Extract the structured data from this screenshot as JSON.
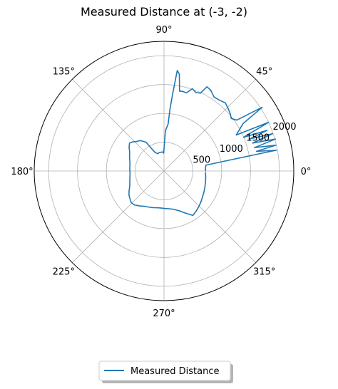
{
  "chart_data": {
    "type": "polar-line",
    "title": "Measured Distance at (-3, -2)",
    "theta_ticks": [
      "0°",
      "45°",
      "90°",
      "135°",
      "180°",
      "225°",
      "270°",
      "315°"
    ],
    "theta_tick_degrees": [
      0,
      45,
      90,
      135,
      180,
      225,
      270,
      315
    ],
    "r_ticks": [
      "500",
      "1000",
      "1500",
      "2000"
    ],
    "r_tick_values": [
      500,
      1000,
      1500,
      2000
    ],
    "rlim": [
      0,
      2250
    ],
    "grid": true,
    "legend_placement": "bottom-center",
    "series": [
      {
        "name": "Measured Distance",
        "color": "#1f77b4",
        "points": [
          {
            "theta": 0,
            "r": 720
          },
          {
            "theta": 5,
            "r": 723
          },
          {
            "theta": 8,
            "r": 735
          },
          {
            "theta": 10.5,
            "r": 1980
          },
          {
            "theta": 12,
            "r": 1640
          },
          {
            "theta": 13,
            "r": 1990
          },
          {
            "theta": 14.5,
            "r": 1620
          },
          {
            "theta": 16,
            "r": 2010
          },
          {
            "theta": 17.5,
            "r": 1610
          },
          {
            "theta": 19,
            "r": 1990
          },
          {
            "theta": 20.5,
            "r": 1590
          },
          {
            "theta": 21.5,
            "r": 1920
          },
          {
            "theta": 23,
            "r": 1500
          },
          {
            "theta": 25,
            "r": 2000
          },
          {
            "theta": 26.5,
            "r": 1400
          },
          {
            "theta": 28,
            "r": 1460
          },
          {
            "theta": 31,
            "r": 1600
          },
          {
            "theta": 33,
            "r": 2030
          },
          {
            "theta": 35,
            "r": 1540
          },
          {
            "theta": 38,
            "r": 1480
          },
          {
            "theta": 41,
            "r": 1520
          },
          {
            "theta": 44,
            "r": 1550
          },
          {
            "theta": 48,
            "r": 1590
          },
          {
            "theta": 52,
            "r": 1560
          },
          {
            "theta": 56,
            "r": 1550
          },
          {
            "theta": 60,
            "r": 1620
          },
          {
            "theta": 63,
            "r": 1640
          },
          {
            "theta": 65,
            "r": 1490
          },
          {
            "theta": 68,
            "r": 1470
          },
          {
            "theta": 71,
            "r": 1510
          },
          {
            "theta": 74,
            "r": 1410
          },
          {
            "theta": 77,
            "r": 1420
          },
          {
            "theta": 79,
            "r": 1410
          },
          {
            "theta": 81,
            "r": 1700
          },
          {
            "theta": 82.5,
            "r": 1760
          },
          {
            "theta": 83.5,
            "r": 1380
          },
          {
            "theta": 84.5,
            "r": 1080
          },
          {
            "theta": 85,
            "r": 820
          },
          {
            "theta": 88,
            "r": 700
          },
          {
            "theta": 91,
            "r": 310
          },
          {
            "theta": 93,
            "r": 330
          },
          {
            "theta": 98,
            "r": 330
          },
          {
            "theta": 104,
            "r": 330
          },
          {
            "theta": 110,
            "r": 320
          },
          {
            "theta": 116,
            "r": 360
          },
          {
            "theta": 122,
            "r": 590
          },
          {
            "theta": 128,
            "r": 670
          },
          {
            "theta": 133,
            "r": 700
          },
          {
            "theta": 137,
            "r": 740
          },
          {
            "theta": 141,
            "r": 770
          },
          {
            "theta": 146,
            "r": 730
          },
          {
            "theta": 151,
            "r": 680
          },
          {
            "theta": 157,
            "r": 650
          },
          {
            "theta": 163,
            "r": 620
          },
          {
            "theta": 170,
            "r": 600
          },
          {
            "theta": 177,
            "r": 595
          },
          {
            "theta": 183,
            "r": 590
          },
          {
            "theta": 190,
            "r": 600
          },
          {
            "theta": 197,
            "r": 620
          },
          {
            "theta": 204,
            "r": 650
          },
          {
            "theta": 210,
            "r": 700
          },
          {
            "theta": 215,
            "r": 740
          },
          {
            "theta": 219,
            "r": 760
          },
          {
            "theta": 224,
            "r": 790
          },
          {
            "theta": 229,
            "r": 780
          },
          {
            "theta": 235,
            "r": 740
          },
          {
            "theta": 241,
            "r": 700
          },
          {
            "theta": 247,
            "r": 680
          },
          {
            "theta": 253,
            "r": 665
          },
          {
            "theta": 259,
            "r": 650
          },
          {
            "theta": 265,
            "r": 645
          },
          {
            "theta": 271,
            "r": 650
          },
          {
            "theta": 277,
            "r": 660
          },
          {
            "theta": 283,
            "r": 680
          },
          {
            "theta": 290,
            "r": 730
          },
          {
            "theta": 297,
            "r": 820
          },
          {
            "theta": 303,
            "r": 920
          },
          {
            "theta": 309,
            "r": 890
          },
          {
            "theta": 315,
            "r": 860
          },
          {
            "theta": 321,
            "r": 830
          },
          {
            "theta": 327,
            "r": 800
          },
          {
            "theta": 333,
            "r": 780
          },
          {
            "theta": 339,
            "r": 760
          },
          {
            "theta": 345,
            "r": 745
          },
          {
            "theta": 352,
            "r": 730
          },
          {
            "theta": 358,
            "r": 720
          }
        ]
      }
    ]
  }
}
